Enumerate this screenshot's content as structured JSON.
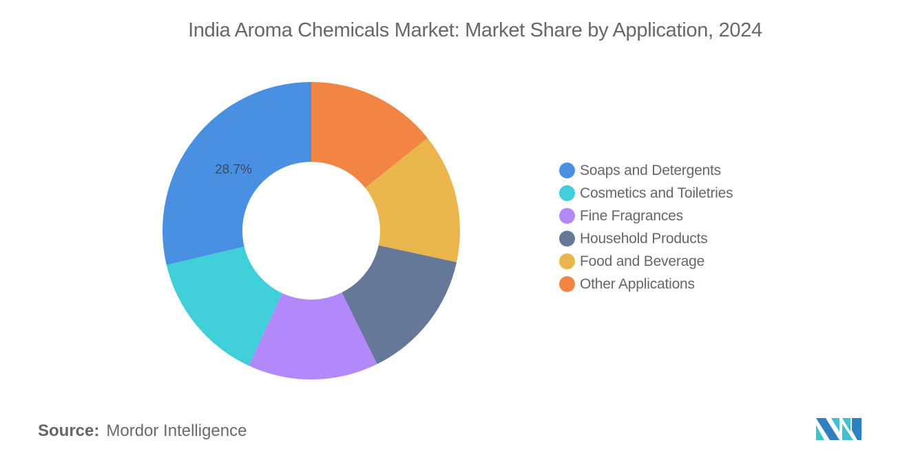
{
  "title": "India Aroma Chemicals Market: Market Share by Application, 2024",
  "source": {
    "label": "Source:",
    "value": "Mordor Intelligence"
  },
  "logo": {
    "name": "Mordor Intelligence logo"
  },
  "legend": [
    {
      "label": "Soaps and Detergents",
      "color": "#4a90e2"
    },
    {
      "label": "Cosmetics and Toiletries",
      "color": "#40cfd9"
    },
    {
      "label": "Fine Fragrances",
      "color": "#b388fa"
    },
    {
      "label": "Household Products",
      "color": "#66789a"
    },
    {
      "label": "Food and Beverage",
      "color": "#ebb54d"
    },
    {
      "label": "Other Applications",
      "color": "#f28444"
    }
  ],
  "chart_data": {
    "type": "pie",
    "subtype": "donut",
    "title": "India Aroma Chemicals Market: Market Share by Application, 2024",
    "categories": [
      "Soaps and Detergents",
      "Cosmetics and Toiletries",
      "Fine Fragrances",
      "Household Products",
      "Food and Beverage",
      "Other Applications"
    ],
    "values": [
      28.7,
      14.4,
      14.2,
      14.3,
      14.1,
      14.3
    ],
    "unit": "%",
    "data_labels": [
      {
        "category": "Soaps and Detergents",
        "text": "28.7%"
      }
    ],
    "colors": [
      "#4a90e2",
      "#40cfd9",
      "#b388fa",
      "#66789a",
      "#ebb54d",
      "#f28444"
    ],
    "legend_position": "right",
    "source": "Mordor Intelligence"
  }
}
